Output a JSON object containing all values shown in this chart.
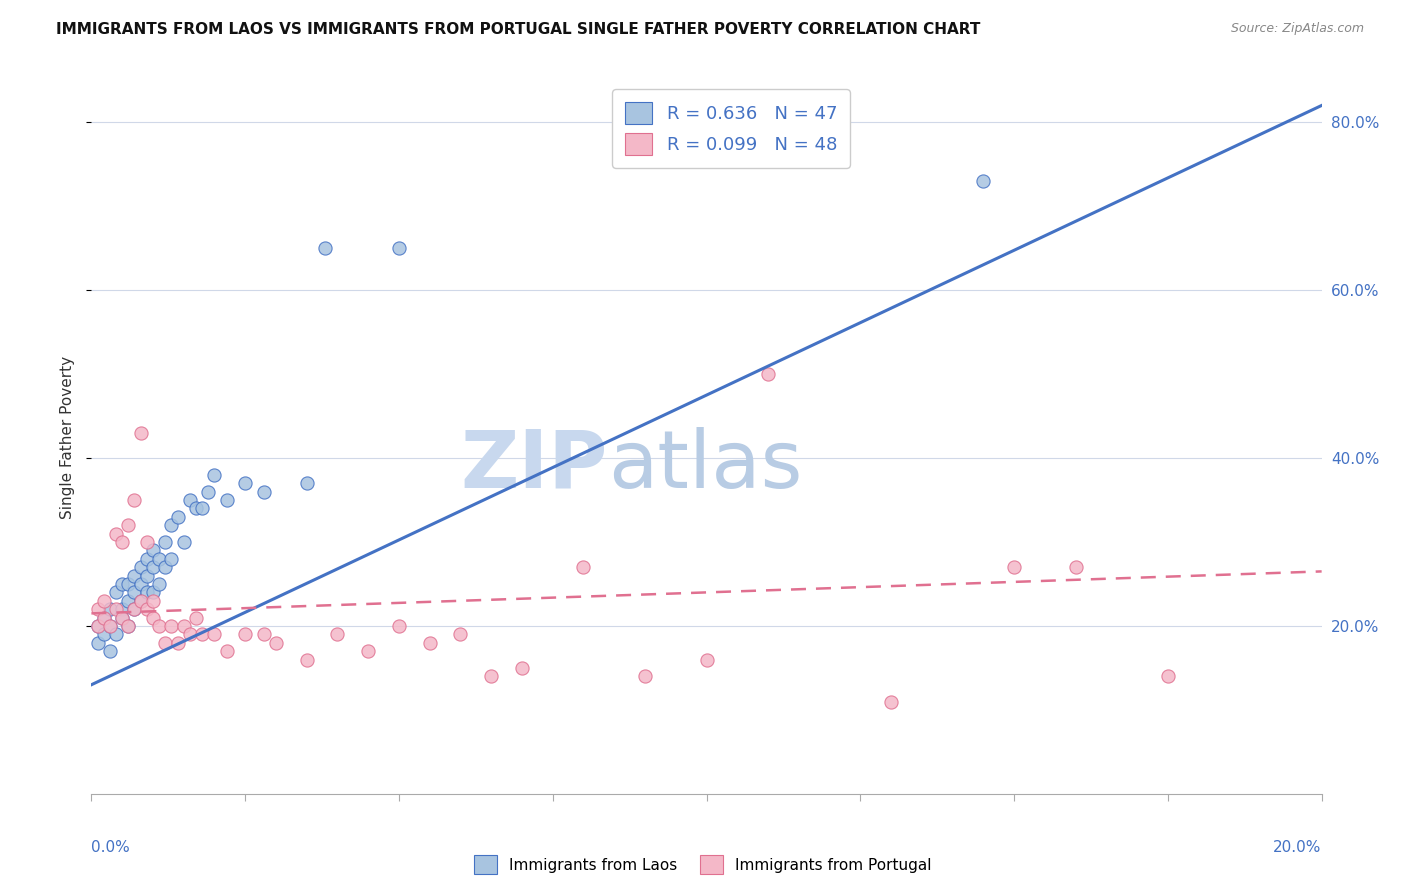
{
  "title": "IMMIGRANTS FROM LAOS VS IMMIGRANTS FROM PORTUGAL SINGLE FATHER POVERTY CORRELATION CHART",
  "source": "Source: ZipAtlas.com",
  "ylabel": "Single Father Poverty",
  "legend_laos": {
    "R": 0.636,
    "N": 47
  },
  "legend_portugal": {
    "R": 0.099,
    "N": 48
  },
  "laos_color": "#a8c4e0",
  "portugal_color": "#f4b8c8",
  "laos_line_color": "#4472c4",
  "portugal_line_color": "#e07090",
  "background_color": "#ffffff",
  "xlim": [
    0,
    0.2
  ],
  "ylim": [
    0,
    0.85
  ],
  "yticks": [
    0.2,
    0.4,
    0.6,
    0.8
  ],
  "ytick_labels": [
    "20.0%",
    "40.0%",
    "60.0%",
    "80.0%"
  ],
  "laos_line_x0": 0.0,
  "laos_line_y0": 0.13,
  "laos_line_x1": 0.2,
  "laos_line_y1": 0.82,
  "port_line_x0": 0.0,
  "port_line_y0": 0.215,
  "port_line_x1": 0.2,
  "port_line_y1": 0.265,
  "laos_scatter_x": [
    0.001,
    0.001,
    0.002,
    0.002,
    0.003,
    0.003,
    0.003,
    0.004,
    0.004,
    0.005,
    0.005,
    0.005,
    0.006,
    0.006,
    0.006,
    0.007,
    0.007,
    0.007,
    0.008,
    0.008,
    0.008,
    0.009,
    0.009,
    0.009,
    0.01,
    0.01,
    0.01,
    0.011,
    0.011,
    0.012,
    0.012,
    0.013,
    0.013,
    0.014,
    0.015,
    0.016,
    0.017,
    0.018,
    0.019,
    0.02,
    0.022,
    0.025,
    0.028,
    0.035,
    0.038,
    0.05,
    0.145
  ],
  "laos_scatter_y": [
    0.18,
    0.2,
    0.19,
    0.21,
    0.17,
    0.2,
    0.22,
    0.19,
    0.24,
    0.22,
    0.21,
    0.25,
    0.2,
    0.23,
    0.25,
    0.22,
    0.24,
    0.26,
    0.23,
    0.25,
    0.27,
    0.24,
    0.26,
    0.28,
    0.24,
    0.27,
    0.29,
    0.25,
    0.28,
    0.27,
    0.3,
    0.28,
    0.32,
    0.33,
    0.3,
    0.35,
    0.34,
    0.34,
    0.36,
    0.38,
    0.35,
    0.37,
    0.36,
    0.37,
    0.65,
    0.65,
    0.73
  ],
  "portugal_scatter_x": [
    0.001,
    0.001,
    0.002,
    0.002,
    0.003,
    0.004,
    0.004,
    0.005,
    0.005,
    0.006,
    0.006,
    0.007,
    0.007,
    0.008,
    0.008,
    0.009,
    0.009,
    0.01,
    0.01,
    0.011,
    0.012,
    0.013,
    0.014,
    0.015,
    0.016,
    0.017,
    0.018,
    0.02,
    0.022,
    0.025,
    0.028,
    0.03,
    0.035,
    0.04,
    0.045,
    0.05,
    0.055,
    0.06,
    0.065,
    0.07,
    0.08,
    0.09,
    0.1,
    0.11,
    0.13,
    0.15,
    0.16,
    0.175
  ],
  "portugal_scatter_y": [
    0.2,
    0.22,
    0.21,
    0.23,
    0.2,
    0.22,
    0.31,
    0.21,
    0.3,
    0.2,
    0.32,
    0.22,
    0.35,
    0.23,
    0.43,
    0.22,
    0.3,
    0.21,
    0.23,
    0.2,
    0.18,
    0.2,
    0.18,
    0.2,
    0.19,
    0.21,
    0.19,
    0.19,
    0.17,
    0.19,
    0.19,
    0.18,
    0.16,
    0.19,
    0.17,
    0.2,
    0.18,
    0.19,
    0.14,
    0.15,
    0.27,
    0.14,
    0.16,
    0.5,
    0.11,
    0.27,
    0.27,
    0.14
  ]
}
